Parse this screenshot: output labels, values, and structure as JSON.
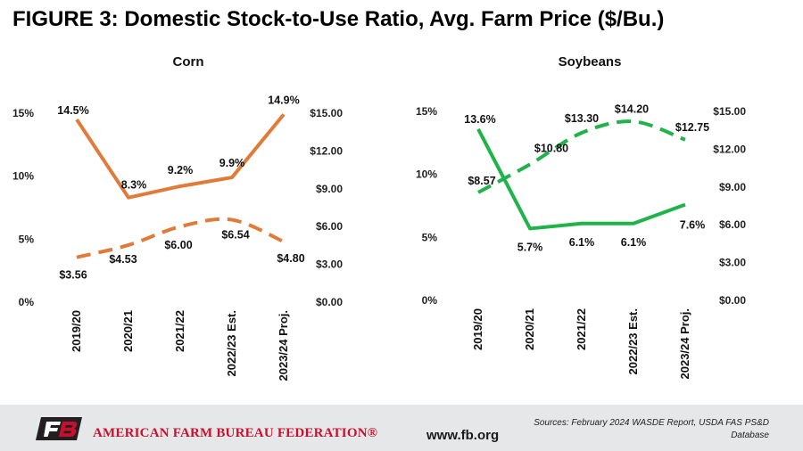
{
  "figure_title": "FIGURE 3: Domestic Stock-to-Use Ratio, Avg. Farm Price ($/Bu.)",
  "footer": {
    "org_name": "AMERICAN FARM BUREAU FEDERATION®",
    "website": "www.fb.org",
    "sources": "Sources: February 2024 WASDE Report, USDA FAS PS&D Database",
    "logo_letters": "FB",
    "colors": {
      "background": "#e6e7e8",
      "org_red": "#c8102e",
      "logo_dark": "#231f20"
    }
  },
  "chart_data": [
    {
      "type": "line",
      "title": "Corn",
      "categories": [
        "2019/20",
        "2020/21",
        "2021/22",
        "2022/23 Est.",
        "2023/24 Proj."
      ],
      "left_axis": {
        "ticks": [
          "0%",
          "5%",
          "10%",
          "15%"
        ],
        "range": [
          0,
          15
        ]
      },
      "right_axis": {
        "ticks": [
          "$0.00",
          "$3.00",
          "$6.00",
          "$9.00",
          "$12.00",
          "$15.00"
        ],
        "range": [
          0,
          15
        ]
      },
      "series": [
        {
          "axis": "left",
          "style": "solid",
          "color": "#e07b39",
          "values": [
            14.5,
            8.3,
            9.2,
            9.9,
            14.9
          ],
          "labels": [
            "14.5%",
            "8.3%",
            "9.2%",
            "9.9%",
            "14.9%"
          ]
        },
        {
          "axis": "right",
          "style": "dashed",
          "color": "#e07b39",
          "values": [
            3.56,
            4.53,
            6.0,
            6.54,
            4.8
          ],
          "labels": [
            "$3.56",
            "$4.53",
            "$6.00",
            "$6.54",
            "$4.80"
          ]
        }
      ]
    },
    {
      "type": "line",
      "title": "Soybeans",
      "categories": [
        "2019/20",
        "2020/21",
        "2021/22",
        "2022/23 Est.",
        "2023/24 Proj."
      ],
      "left_axis": {
        "ticks": [
          "0%",
          "5%",
          "10%",
          "15%"
        ],
        "range": [
          0,
          15
        ]
      },
      "right_axis": {
        "ticks": [
          "$0.00",
          "$3.00",
          "$6.00",
          "$9.00",
          "$12.00",
          "$15.00"
        ],
        "range": [
          0,
          15
        ]
      },
      "series": [
        {
          "axis": "left",
          "style": "solid",
          "color": "#1fb34a",
          "values": [
            13.6,
            5.7,
            6.1,
            6.1,
            7.6
          ],
          "labels": [
            "13.6%",
            "5.7%",
            "6.1%",
            "6.1%",
            "7.6%"
          ]
        },
        {
          "axis": "right",
          "style": "dashed",
          "color": "#1fb34a",
          "values": [
            8.57,
            10.8,
            13.3,
            14.2,
            12.75
          ],
          "labels": [
            "$8.57",
            "$10.80",
            "$13.30",
            "$14.20",
            "$12.75"
          ]
        }
      ]
    }
  ]
}
